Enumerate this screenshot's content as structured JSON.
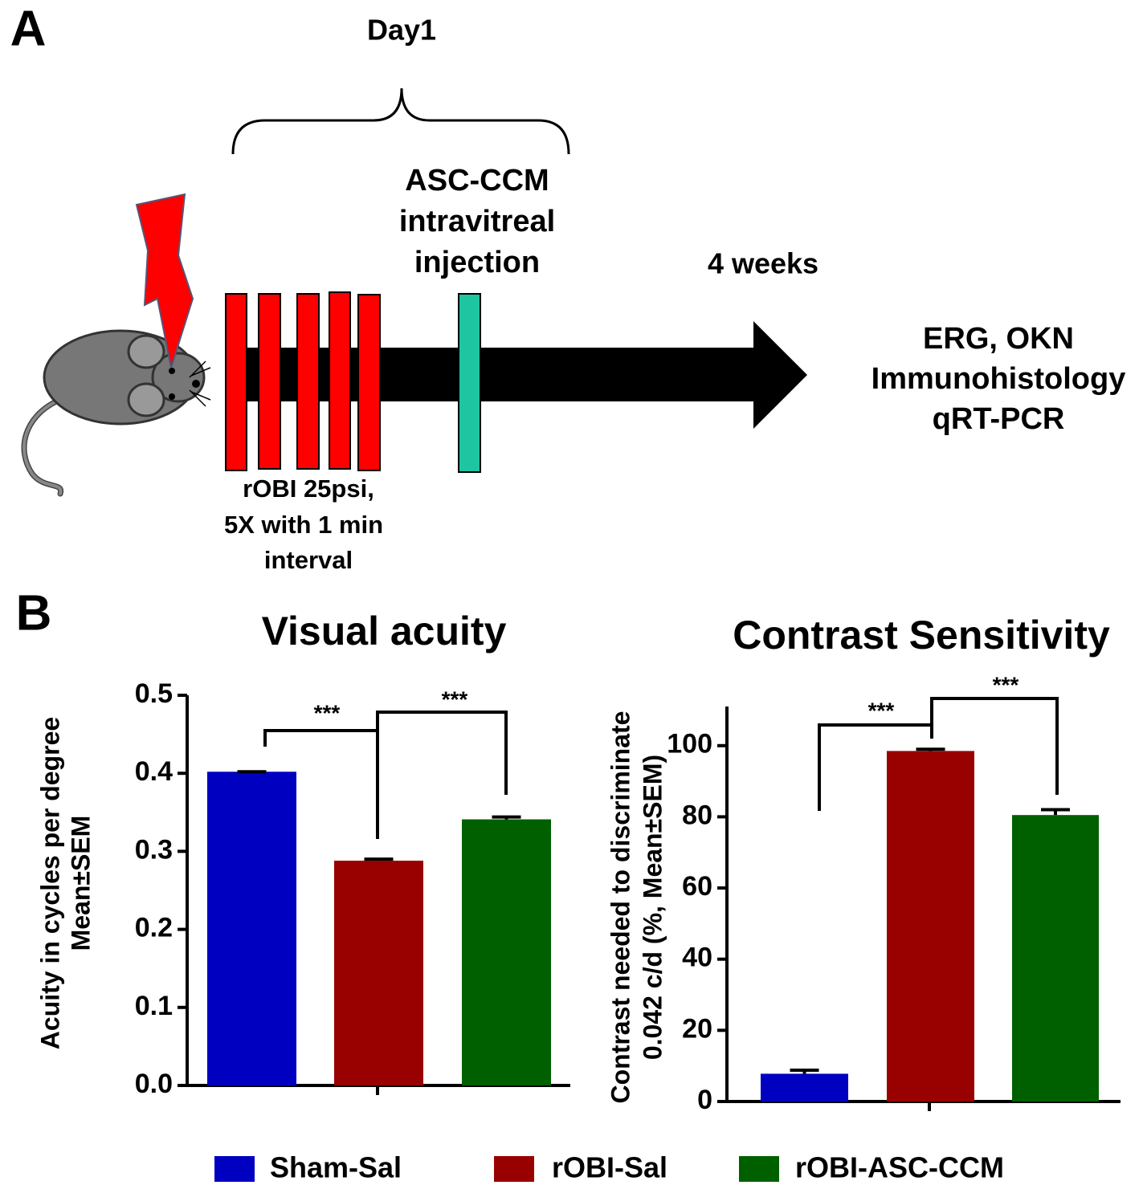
{
  "panel_a": {
    "label": "A",
    "period": "Day1",
    "treatment": [
      "ASC-CCM",
      "intravitreal",
      "injection"
    ],
    "duration": "4 weeks",
    "outcomes": [
      "ERG, OKN",
      "Immunohistology",
      "qRT-PCR"
    ],
    "injury": [
      "rOBI 25psi,",
      "5X with 1 min",
      "interval"
    ]
  },
  "panel_b": {
    "label": "B"
  },
  "chart_data": [
    {
      "type": "bar",
      "title": "Visual acuity",
      "y_label": [
        "Acuity in cycles per degree",
        "Mean±SEM"
      ],
      "categories": [
        null
      ],
      "series": [
        {
          "name": "Sham-Sal",
          "color": "#0000c0",
          "values": [
            0.402
          ],
          "errors": [
            0
          ]
        },
        {
          "name": "rOBI-Sal",
          "color": "#990000",
          "values": [
            0.288
          ],
          "errors": [
            0.002
          ]
        },
        {
          "name": "rOBI-ASC-CCM",
          "color": "#006000",
          "values": [
            0.341
          ],
          "errors": [
            0.003
          ]
        }
      ],
      "ylim": [
        0,
        0.5
      ],
      "yticks": [
        {
          "value": 0,
          "label": "0.0"
        },
        0.1,
        0.2,
        0.3,
        0.4,
        0.5
      ],
      "annotations": [
        "***",
        "***"
      ]
    },
    {
      "type": "bar",
      "title": "Contrast Sensitivity",
      "y_label": [
        "Contrast needed to discriminate",
        "0.042 c/d (%, Mean±SEM)"
      ],
      "categories": [
        null
      ],
      "series": [
        {
          "color": "#0000c0",
          "values": [
            7.8
          ],
          "errors": [
            1
          ]
        },
        {
          "color": "#990000",
          "values": [
            98.5
          ],
          "errors": [
            0.5
          ]
        },
        {
          "color": "#006000",
          "values": [
            80.5
          ],
          "errors": [
            1.5
          ]
        }
      ],
      "ylim": [
        0,
        111
      ],
      "yticks": [
        0,
        20,
        40,
        60,
        80,
        100
      ],
      "annotations": [
        "***",
        "***"
      ]
    }
  ]
}
